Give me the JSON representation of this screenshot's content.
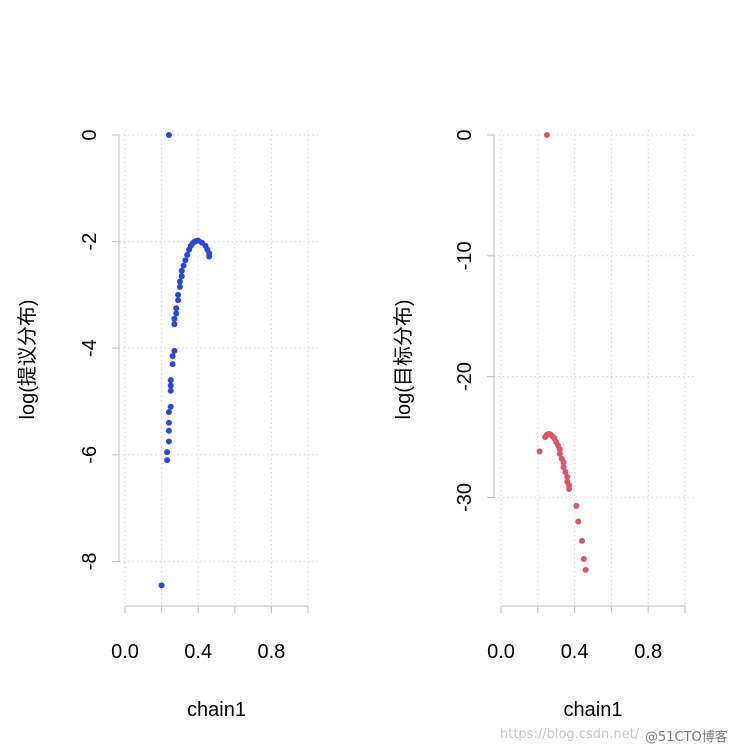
{
  "watermark": {
    "left_text": "https://blog.csdn.net/",
    "right_text": "@51CTO博客"
  },
  "chart_data": [
    {
      "type": "scatter",
      "title": "",
      "xlabel": "chain1",
      "ylabel": "log(提议分布)",
      "xlim": [
        0,
        1
      ],
      "ylim": [
        -8.5,
        0
      ],
      "x_ticks": [
        0.0,
        0.4,
        0.8
      ],
      "x_tick_labels": [
        "0.0",
        "0.4",
        "0.8"
      ],
      "y_ticks": [
        0,
        -2,
        -4,
        -6,
        -8
      ],
      "y_tick_labels": [
        "0",
        "-2",
        "-4",
        "-6",
        "-8"
      ],
      "grid": true,
      "color": "#2a46e0",
      "series": [
        {
          "x": [
            0.24,
            0.2,
            0.23,
            0.23,
            0.24,
            0.24,
            0.24,
            0.24,
            0.25,
            0.25,
            0.25,
            0.25,
            0.26,
            0.26,
            0.27,
            0.27,
            0.27,
            0.28,
            0.28,
            0.29,
            0.29,
            0.3,
            0.3,
            0.31,
            0.31,
            0.32,
            0.33,
            0.34,
            0.35,
            0.36,
            0.37,
            0.38,
            0.39,
            0.4,
            0.42,
            0.44,
            0.45,
            0.46,
            0.46
          ],
          "y": [
            0,
            -8.45,
            -6.1,
            -5.95,
            -5.75,
            -5.55,
            -5.4,
            -5.2,
            -5.1,
            -4.8,
            -4.7,
            -4.6,
            -4.3,
            -4.15,
            -4.05,
            -3.55,
            -3.45,
            -3.35,
            -3.25,
            -3.1,
            -3.0,
            -2.85,
            -2.75,
            -2.65,
            -2.55,
            -2.45,
            -2.35,
            -2.25,
            -2.15,
            -2.08,
            -2.03,
            -2.0,
            -1.99,
            -1.98,
            -2.02,
            -2.08,
            -2.15,
            -2.22,
            -2.28
          ]
        }
      ]
    },
    {
      "type": "scatter",
      "title": "",
      "xlabel": "chain1",
      "ylabel": "log(目标分布)",
      "xlim": [
        0,
        1
      ],
      "ylim": [
        -37.5,
        0
      ],
      "x_ticks": [
        0.0,
        0.4,
        0.8
      ],
      "x_tick_labels": [
        "0.0",
        "0.4",
        "0.8"
      ],
      "y_ticks": [
        0,
        -10,
        -20,
        -30
      ],
      "y_tick_labels": [
        "0",
        "-10",
        "-20",
        "-30"
      ],
      "grid": true,
      "color": "#df536b",
      "series": [
        {
          "x": [
            0.25,
            0.21,
            0.24,
            0.25,
            0.26,
            0.27,
            0.28,
            0.29,
            0.3,
            0.31,
            0.32,
            0.32,
            0.33,
            0.34,
            0.34,
            0.35,
            0.36,
            0.36,
            0.37,
            0.37,
            0.41,
            0.42,
            0.44,
            0.45,
            0.46
          ],
          "y": [
            0,
            -26.2,
            -25.0,
            -24.8,
            -24.75,
            -24.8,
            -24.95,
            -25.1,
            -25.4,
            -25.7,
            -26.0,
            -26.4,
            -26.8,
            -27.1,
            -27.5,
            -27.9,
            -28.3,
            -28.7,
            -29.0,
            -29.3,
            -30.7,
            -32.0,
            -33.6,
            -35.1,
            -36.0
          ]
        }
      ]
    }
  ]
}
